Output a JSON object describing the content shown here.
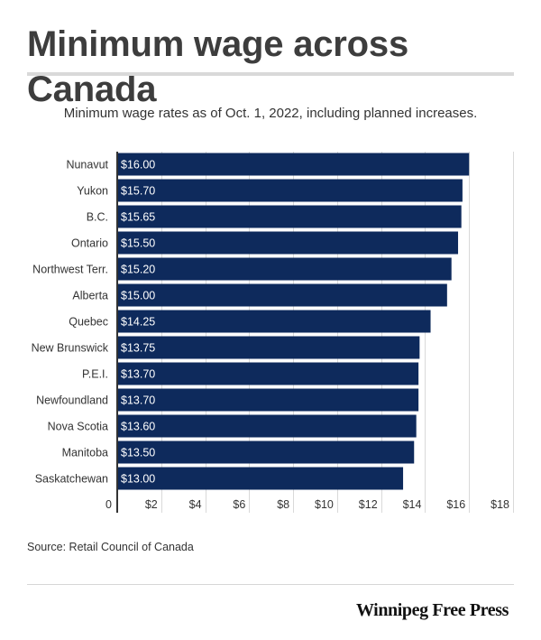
{
  "header": {
    "title": "Minimum wage across Canada",
    "subtitle": "Minimum wage rates as of Oct. 1, 2022, including planned increases."
  },
  "footer": {
    "source": "Source: Retail Council of Canada",
    "brand": "Winnipeg Free Press"
  },
  "colors": {
    "bar": "#0e2a5c",
    "bar_label": "#ffffff",
    "grid": "#d9d9d9",
    "axis": "#333333",
    "text": "#333333"
  },
  "chart_data": {
    "type": "bar",
    "orientation": "horizontal",
    "title": "",
    "xlabel": "",
    "ylabel": "",
    "categories": [
      "Nunavut",
      "Yukon",
      "B.C.",
      "Ontario",
      "Northwest Terr.",
      "Alberta",
      "Quebec",
      "New Brunswick",
      "P.E.I.",
      "Newfoundland",
      "Nova Scotia",
      "Manitoba",
      "Saskatchewan"
    ],
    "values": [
      16.0,
      15.7,
      15.65,
      15.5,
      15.2,
      15.0,
      14.25,
      13.75,
      13.7,
      13.7,
      13.6,
      13.5,
      13.0
    ],
    "data_labels": [
      "$16.00",
      "$15.70",
      "$15.65",
      "$15.50",
      "$15.20",
      "$15.00",
      "$14.25",
      "$13.75",
      "$13.70",
      "$13.70",
      "$13.60",
      "$13.50",
      "$13.00"
    ],
    "xlim": [
      0,
      18
    ],
    "x_ticks": [
      0,
      2,
      4,
      6,
      8,
      10,
      12,
      14,
      16,
      18
    ],
    "x_tick_labels": [
      "0",
      "$2",
      "$4",
      "$6",
      "$8",
      "$10",
      "$12",
      "$14",
      "$16",
      "$18"
    ],
    "grid": true,
    "legend": "none"
  }
}
